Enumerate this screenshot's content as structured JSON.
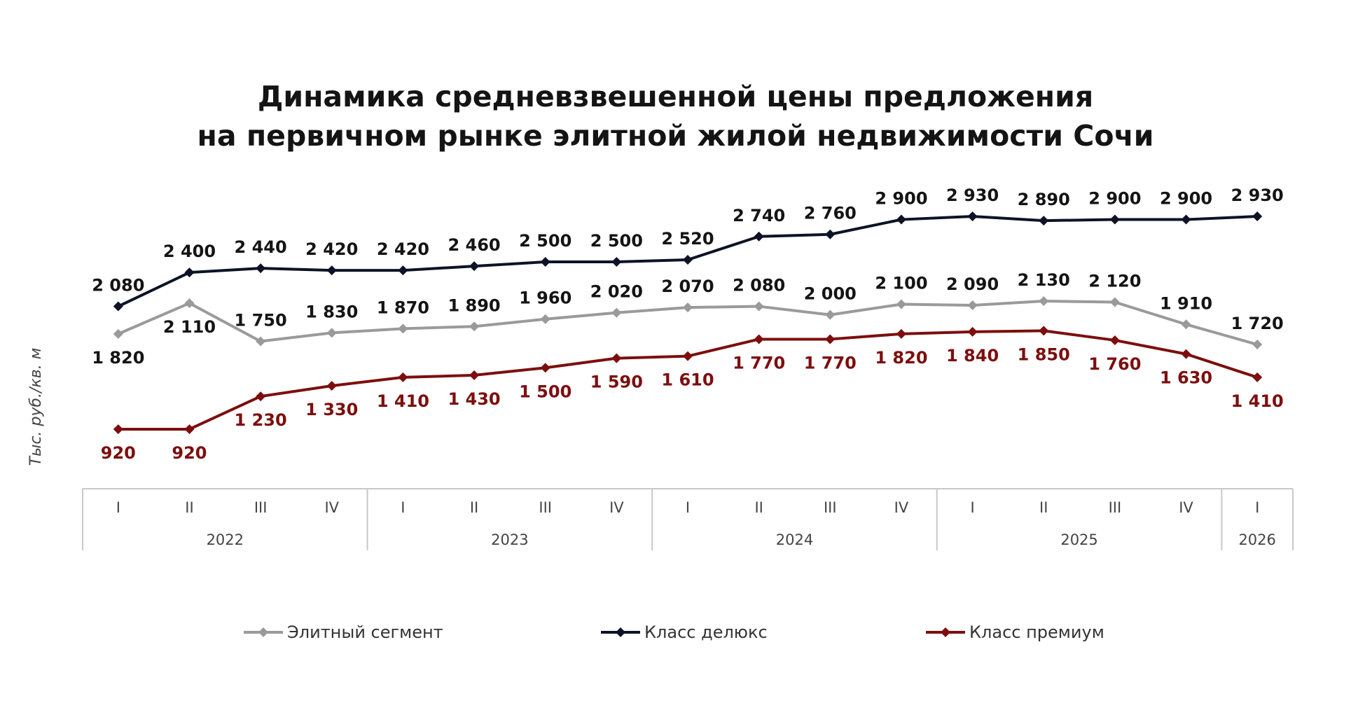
{
  "chart_data": {
    "type": "line",
    "title": [
      "Динамика средневзвешенной цены предложения",
      "на первичном рынке элитной жилой недвижимости Сочи"
    ],
    "ylabel": "Тыс. руб./кв. м",
    "xlabel": "",
    "ylim": [
      900,
      2950
    ],
    "categories": [
      "I",
      "II",
      "III",
      "IV",
      "I",
      "II",
      "III",
      "IV",
      "I",
      "II",
      "III",
      "IV",
      "I",
      "II",
      "III",
      "IV",
      "I"
    ],
    "years": [
      {
        "label": "2022",
        "count": 4
      },
      {
        "label": "2023",
        "count": 4
      },
      {
        "label": "2024",
        "count": 4
      },
      {
        "label": "2025",
        "count": 4
      },
      {
        "label": "2026",
        "count": 1
      }
    ],
    "series": [
      {
        "name": "Элитный сегмент",
        "color": "#9a9a9a",
        "values": [
          1820,
          2110,
          1750,
          1830,
          1870,
          1890,
          1960,
          2020,
          2070,
          2080,
          2000,
          2100,
          2090,
          2130,
          2120,
          1910,
          1720
        ],
        "labels": [
          "1 820",
          "2 110",
          "1 750",
          "1 830",
          "1 870",
          "1 890",
          "1 960",
          "2 020",
          "2 070",
          "2 080",
          "2 000",
          "2 100",
          "2 090",
          "2 130",
          "2 120",
          "1 910",
          "1 720"
        ],
        "label_color": "#141414"
      },
      {
        "name": "Класс делюкс",
        "color": "#0d1326",
        "values": [
          2080,
          2400,
          2440,
          2420,
          2420,
          2460,
          2500,
          2500,
          2520,
          2740,
          2760,
          2900,
          2930,
          2890,
          2900,
          2900,
          2930
        ],
        "labels": [
          "2 080",
          "2 400",
          "2 440",
          "2 420",
          "2 420",
          "2 460",
          "2 500",
          "2 500",
          "2 520",
          "2 740",
          "2 760",
          "2 900",
          "2 930",
          "2 890",
          "2 900",
          "2 900",
          "2 930"
        ],
        "label_color": "#141414"
      },
      {
        "name": "Класс премиум",
        "color": "#7d0e0e",
        "values": [
          920,
          920,
          1230,
          1330,
          1410,
          1430,
          1500,
          1590,
          1610,
          1770,
          1770,
          1820,
          1840,
          1850,
          1760,
          1630,
          1410
        ],
        "labels": [
          "920",
          "920",
          "1 230",
          "1 330",
          "1 410",
          "1 430",
          "1 500",
          "1 590",
          "1 610",
          "1 770",
          "1 770",
          "1 820",
          "1 840",
          "1 850",
          "1 760",
          "1 630",
          "1 410"
        ],
        "label_color": "#7d0e0e"
      }
    ],
    "legend": {
      "position": "bottom"
    }
  }
}
